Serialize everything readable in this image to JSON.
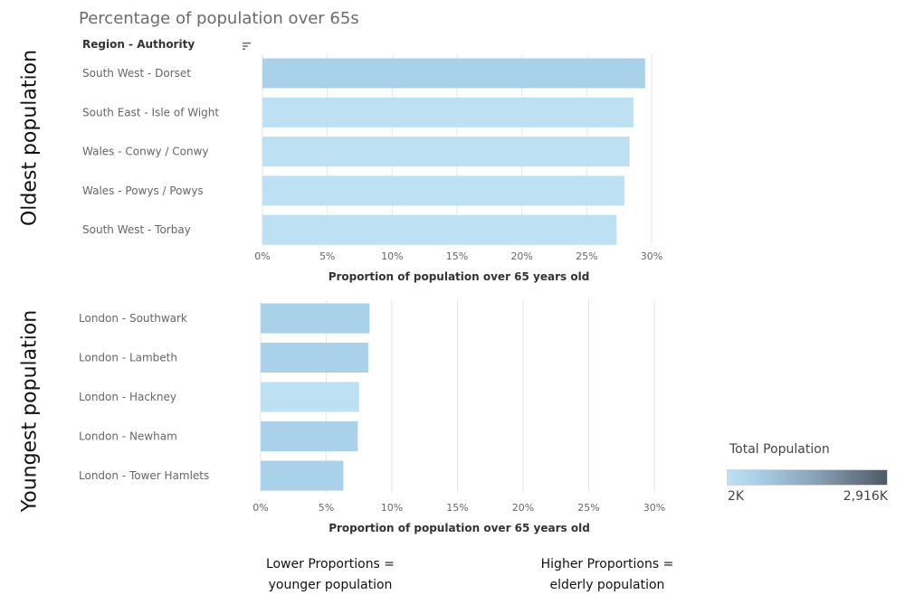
{
  "title": "Percentage of population over 65s",
  "column_header": "Region - Authority",
  "icons": {
    "sort": "sort-icon"
  },
  "colors": {
    "bar_dark": "#a9d1ea",
    "bar_light": "#bde0f2",
    "grid": "#e6e6e6",
    "legend_low": "#bfe1f3",
    "legend_high": "#4e5a66"
  },
  "notes": {
    "lower": [
      "Lower Proportions =",
      "younger population"
    ],
    "higher": [
      "Higher Proportions =",
      "elderly population"
    ]
  },
  "legend": {
    "title": "Total Population",
    "min_label": "2K",
    "max_label": "2,916K"
  },
  "chart_data": [
    {
      "type": "bar",
      "orientation": "horizontal",
      "side_label": "Oldest population",
      "xlabel": "Proportion of population over 65 years old",
      "xlim": [
        0,
        30
      ],
      "ticks": [
        "0%",
        "5%",
        "10%",
        "15%",
        "20%",
        "25%",
        "30%"
      ],
      "categories": [
        "South West - Dorset",
        "South East - Isle of Wight",
        "Wales - Conwy / Conwy",
        "Wales - Powys / Powys",
        "South West - Torbay"
      ],
      "values": [
        29.5,
        28.6,
        28.3,
        27.9,
        27.3
      ],
      "bar_colors": [
        "#a9d1ea",
        "#bde0f2",
        "#bde0f2",
        "#bde0f2",
        "#bde0f2"
      ]
    },
    {
      "type": "bar",
      "orientation": "horizontal",
      "side_label": "Youngest population",
      "xlabel": "Proportion of population over 65 years old",
      "xlim": [
        0,
        30
      ],
      "ticks": [
        "0%",
        "5%",
        "10%",
        "15%",
        "20%",
        "25%",
        "30%"
      ],
      "categories": [
        "London - Southwark",
        "London - Lambeth",
        "London - Hackney",
        "London - Newham",
        "London - Tower Hamlets"
      ],
      "values": [
        8.3,
        8.2,
        7.5,
        7.4,
        6.3
      ],
      "bar_colors": [
        "#a9d1ea",
        "#a9d1ea",
        "#bde0f2",
        "#a9d1ea",
        "#a9d1ea"
      ]
    }
  ]
}
